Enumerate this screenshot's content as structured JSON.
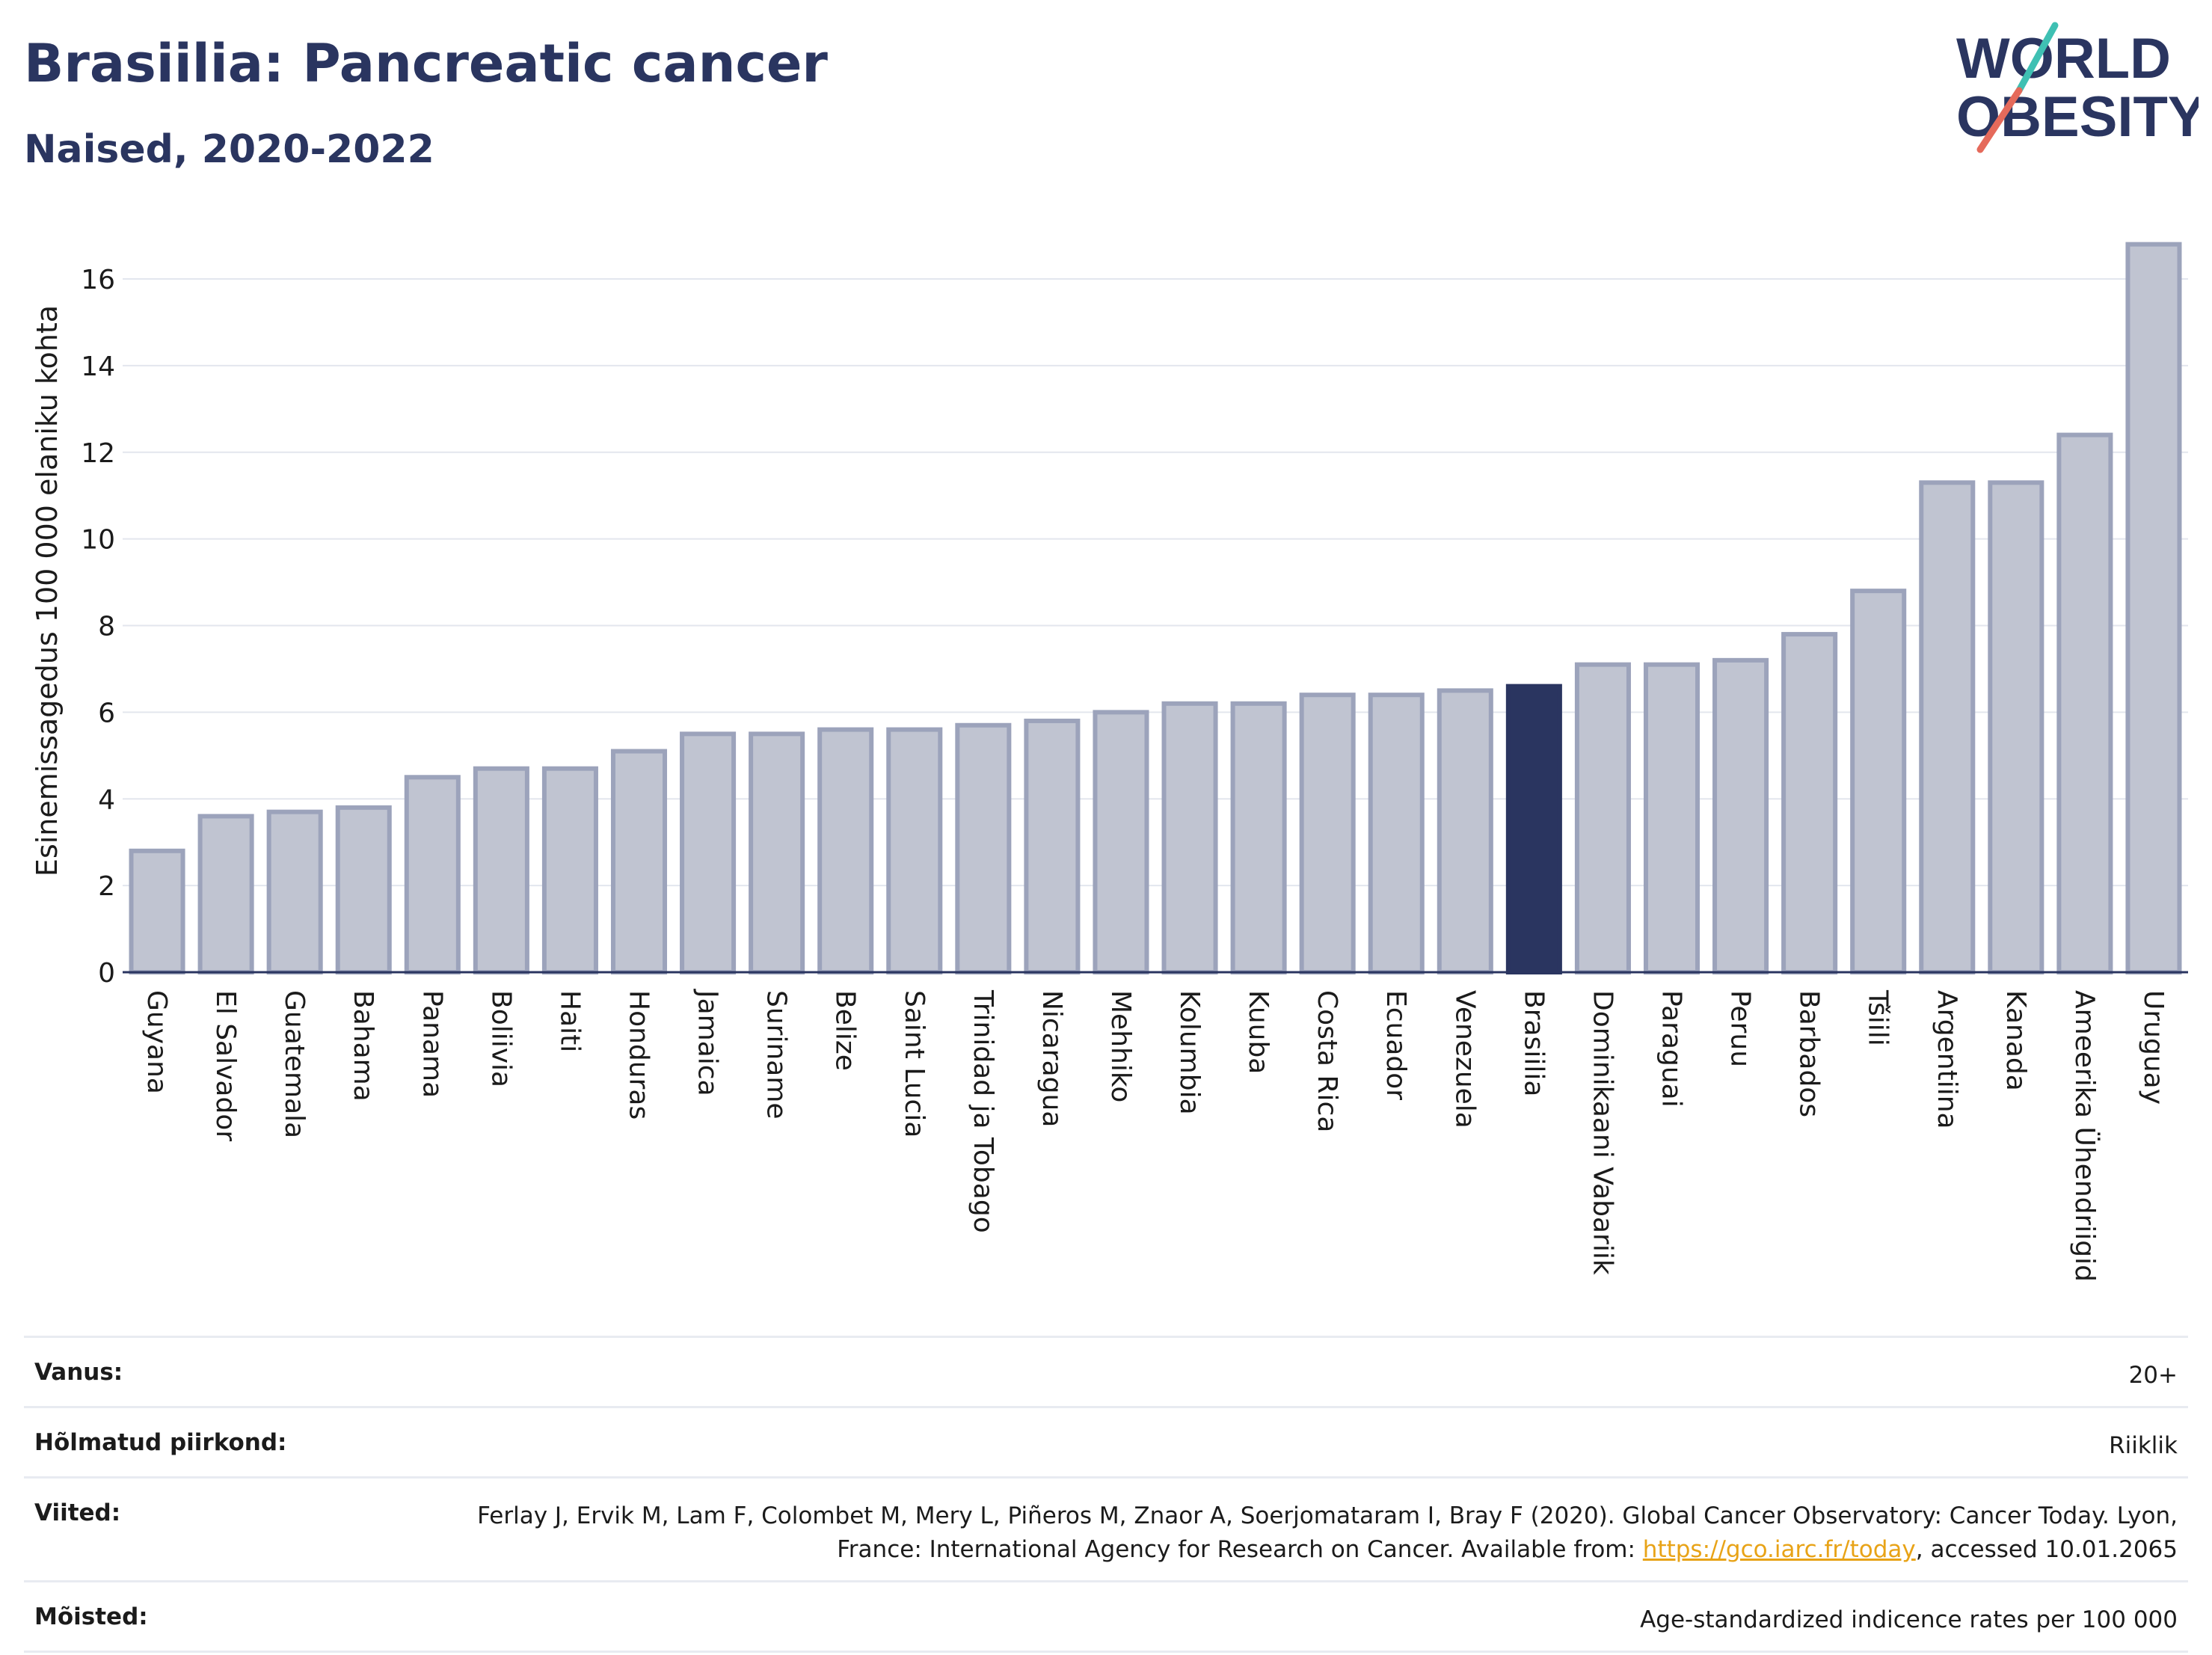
{
  "header": {
    "title": "Brasiilia: Pancreatic cancer",
    "subtitle": "Naised, 2020-2022"
  },
  "logo": {
    "line1": "WORLD",
    "line2": "OBESITY"
  },
  "colors": {
    "highlight": "#2a3560",
    "bar_fill": "#c0c4d1",
    "bar_stroke": "#9ca3bb",
    "logo_text": "#2a3560",
    "logo_teal": "#3fc0b3",
    "logo_coral": "#e56a5b"
  },
  "chart_data": {
    "type": "bar",
    "ylabel": "Esinemissagedus 100 000 elaniku kohta",
    "ylim": [
      0,
      17
    ],
    "yticks": [
      0,
      2,
      4,
      6,
      8,
      10,
      12,
      14,
      16
    ],
    "grid": true,
    "highlight": "Brasiilia",
    "categories": [
      "Guyana",
      "El Salvador",
      "Guatemala",
      "Bahama",
      "Panama",
      "Boliivia",
      "Haiti",
      "Honduras",
      "Jamaica",
      "Suriname",
      "Belize",
      "Saint Lucia",
      "Trinidad ja Tobago",
      "Nicaragua",
      "Mehhiko",
      "Kolumbia",
      "Kuuba",
      "Costa Rica",
      "Ecuador",
      "Venezuela",
      "Brasiilia",
      "Dominikaani Vabariik",
      "Paraguai",
      "Peruu",
      "Barbados",
      "Tšiili",
      "Argentiina",
      "Kanada",
      "Ameerika Ühendriigid",
      "Uruguay"
    ],
    "values": [
      2.8,
      3.6,
      3.7,
      3.8,
      4.5,
      4.7,
      4.7,
      5.1,
      5.5,
      5.5,
      5.6,
      5.6,
      5.7,
      5.8,
      6.0,
      6.2,
      6.2,
      6.4,
      6.4,
      6.5,
      6.6,
      7.1,
      7.1,
      7.2,
      7.8,
      8.8,
      11.3,
      11.3,
      12.4,
      16.8
    ]
  },
  "info": {
    "age_label": "Vanus:",
    "age_value": "20+",
    "area_label": "Hõlmatud piirkond:",
    "area_value": "Riiklik",
    "refs_label": "Viited:",
    "refs_text_1": "Ferlay J, Ervik M, Lam F, Colombet M, Mery L, Piñeros M, Znaor A, Soerjomataram I, Bray F (2020). Global Cancer Observatory: Cancer Today. Lyon, France: International Agency for Research on Cancer. Available from: ",
    "refs_link": "https://gco.iarc.fr/today",
    "refs_text_2": ", accessed 10.01.2065",
    "defs_label": "Mõisted:",
    "defs_value": "Age-standardized indicence rates per 100 000"
  }
}
